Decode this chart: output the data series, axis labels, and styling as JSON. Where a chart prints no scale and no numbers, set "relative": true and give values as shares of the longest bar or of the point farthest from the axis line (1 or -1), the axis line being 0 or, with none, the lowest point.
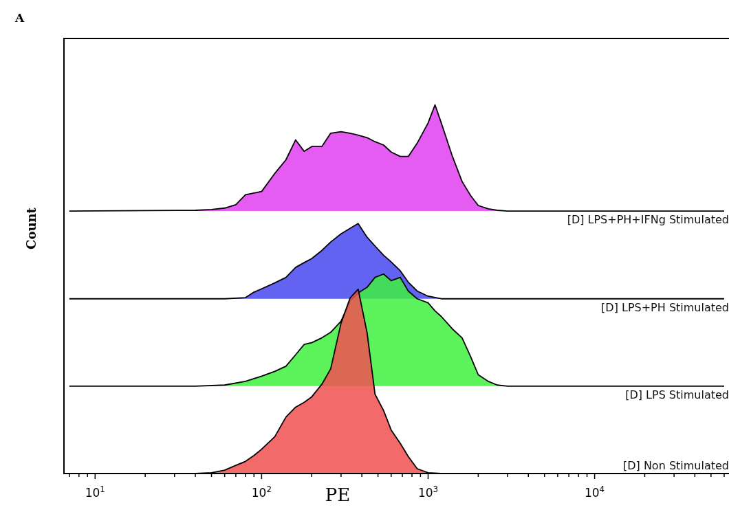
{
  "chart_data": {
    "type": "area",
    "title": "A",
    "xlabel": "PE",
    "ylabel": "Count",
    "relative": true,
    "log": "x",
    "xlim": [
      6.5,
      66000
    ],
    "xticks": [
      {
        "value": 7,
        "label": null
      },
      {
        "value": 8,
        "label": null
      },
      {
        "value": 9,
        "label": null
      },
      {
        "value": 10,
        "label": "10$^{1}$"
      },
      {
        "value": 20,
        "label": null
      },
      {
        "value": 30,
        "label": null
      },
      {
        "value": 40,
        "label": null
      },
      {
        "value": 50,
        "label": null
      },
      {
        "value": 60,
        "label": null
      },
      {
        "value": 70,
        "label": null
      },
      {
        "value": 80,
        "label": null
      },
      {
        "value": 90,
        "label": null
      },
      {
        "value": 100,
        "label": "10$^{2}$"
      },
      {
        "value": 200,
        "label": null
      },
      {
        "value": 300,
        "label": null
      },
      {
        "value": 400,
        "label": null
      },
      {
        "value": 500,
        "label": null
      },
      {
        "value": 600,
        "label": null
      },
      {
        "value": 700,
        "label": null
      },
      {
        "value": 800,
        "label": null
      },
      {
        "value": 900,
        "label": null
      },
      {
        "value": 1000,
        "label": "10$^{3}$"
      },
      {
        "value": 2000,
        "label": null
      },
      {
        "value": 3000,
        "label": null
      },
      {
        "value": 4000,
        "label": null
      },
      {
        "value": 5000,
        "label": null
      },
      {
        "value": 6000,
        "label": null
      },
      {
        "value": 7000,
        "label": null
      },
      {
        "value": 8000,
        "label": null
      },
      {
        "value": 9000,
        "label": null
      },
      {
        "value": 10000,
        "label": "10$^{4}$"
      },
      {
        "value": 20000,
        "label": null
      },
      {
        "value": 30000,
        "label": null
      },
      {
        "value": 40000,
        "label": null
      },
      {
        "value": 50000,
        "label": null
      },
      {
        "value": 60000,
        "label": null
      }
    ],
    "grid": false,
    "legend": false,
    "series": [
      {
        "name": "[D] LPS+PH+IFNg Stimulated",
        "color": "#e040f0",
        "x": [
          7,
          40,
          50,
          60,
          70,
          80,
          90,
          100,
          120,
          140,
          160,
          180,
          200,
          230,
          260,
          300,
          340,
          380,
          430,
          480,
          540,
          600,
          680,
          760,
          860,
          1000,
          1100,
          1200,
          1400,
          1600,
          1800,
          2000,
          2300,
          2600,
          3000,
          60000
        ],
        "values": [
          0.712,
          0.714,
          0.716,
          0.72,
          0.729,
          0.756,
          0.761,
          0.765,
          0.814,
          0.851,
          0.905,
          0.874,
          0.887,
          0.887,
          0.923,
          0.927,
          0.923,
          0.918,
          0.911,
          0.9,
          0.891,
          0.872,
          0.86,
          0.86,
          0.896,
          0.951,
          1,
          0.951,
          0.86,
          0.792,
          0.754,
          0.727,
          0.718,
          0.714,
          0.712,
          0.712
        ]
      },
      {
        "name": "[D] LPS+PH Stimulated",
        "color": "#4848f0",
        "x": [
          7,
          40,
          60,
          80,
          90,
          100,
          120,
          140,
          160,
          180,
          200,
          230,
          260,
          300,
          340,
          380,
          430,
          480,
          540,
          600,
          680,
          760,
          860,
          1000,
          1200,
          60000
        ],
        "values": [
          0.474,
          0.474,
          0.474,
          0.477,
          0.492,
          0.501,
          0.517,
          0.532,
          0.559,
          0.572,
          0.583,
          0.605,
          0.628,
          0.65,
          0.665,
          0.678,
          0.641,
          0.617,
          0.592,
          0.574,
          0.55,
          0.519,
          0.495,
          0.481,
          0.474,
          0.474
        ]
      },
      {
        "name": "[D] LPS Stimulated",
        "color": "#40f040",
        "x": [
          7,
          40,
          60,
          80,
          100,
          120,
          140,
          160,
          180,
          200,
          230,
          260,
          300,
          340,
          380,
          430,
          480,
          540,
          600,
          680,
          760,
          860,
          1000,
          1100,
          1200,
          1400,
          1600,
          1800,
          2000,
          2300,
          2600,
          3000,
          60000
        ],
        "values": [
          0.237,
          0.237,
          0.24,
          0.25,
          0.264,
          0.277,
          0.291,
          0.322,
          0.35,
          0.355,
          0.368,
          0.383,
          0.413,
          0.468,
          0.49,
          0.505,
          0.532,
          0.541,
          0.523,
          0.532,
          0.495,
          0.474,
          0.463,
          0.441,
          0.426,
          0.392,
          0.368,
          0.317,
          0.268,
          0.25,
          0.24,
          0.237,
          0.237
        ]
      },
      {
        "name": "[D] Non Stimulated",
        "color": "#f05050",
        "x": [
          7,
          40,
          50,
          60,
          70,
          80,
          90,
          100,
          120,
          140,
          160,
          180,
          200,
          230,
          260,
          300,
          340,
          380,
          430,
          480,
          540,
          600,
          680,
          760,
          860,
          1000,
          1200,
          60000
        ],
        "values": [
          0,
          0,
          0.002,
          0.009,
          0.022,
          0.033,
          0.049,
          0.066,
          0.1,
          0.153,
          0.18,
          0.193,
          0.208,
          0.242,
          0.284,
          0.408,
          0.476,
          0.5,
          0.382,
          0.215,
          0.171,
          0.118,
          0.082,
          0.046,
          0.013,
          0.002,
          0,
          0
        ]
      }
    ]
  }
}
